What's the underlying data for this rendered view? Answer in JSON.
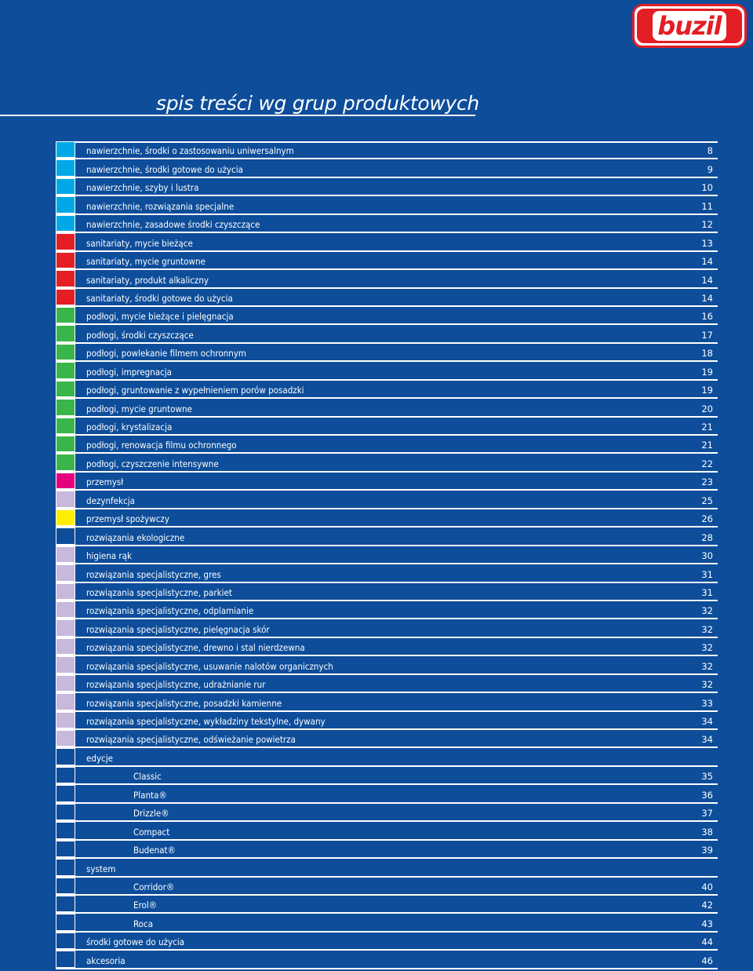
{
  "logo": {
    "text": "buzil"
  },
  "title": "spis treści wg grup produktowych",
  "colors": {
    "cyan": "#00a8e6",
    "red": "#e31e24",
    "green": "#3ab54a",
    "magenta": "#e5007e",
    "lavender": "#c8b8dc",
    "yellow": "#ffed00",
    "navy": "#0d4d9a"
  },
  "entries": [
    {
      "label": "nawierzchnie, środki o zastosowaniu uniwersalnym",
      "page": "8",
      "color": "#00a8e6"
    },
    {
      "label": "nawierzchnie, środki gotowe do użycia",
      "page": "9",
      "color": "#00a8e6"
    },
    {
      "label": "nawierzchnie, szyby i lustra",
      "page": "10",
      "color": "#00a8e6"
    },
    {
      "label": "nawierzchnie, rozwiązania specjalne",
      "page": "11",
      "color": "#00a8e6"
    },
    {
      "label": "nawierzchnie, zasadowe środki czyszczące",
      "page": "12",
      "color": "#00a8e6"
    },
    {
      "label": "sanitariaty, mycie bieżące",
      "page": "13",
      "color": "#e31e24"
    },
    {
      "label": "sanitariaty, mycie gruntowne",
      "page": "14",
      "color": "#e31e24"
    },
    {
      "label": "sanitariaty, produkt alkaliczny",
      "page": "14",
      "color": "#e31e24"
    },
    {
      "label": "sanitariaty, środki gotowe do użycia",
      "page": "14",
      "color": "#e31e24"
    },
    {
      "label": "podłogi, mycie bieżące i pielęgnacja",
      "page": "16",
      "color": "#3ab54a"
    },
    {
      "label": "podłogi, środki czyszczące",
      "page": "17",
      "color": "#3ab54a"
    },
    {
      "label": "podłogi, powlekanie filmem ochronnym",
      "page": "18",
      "color": "#3ab54a"
    },
    {
      "label": "podłogi, impregnacja",
      "page": "19",
      "color": "#3ab54a"
    },
    {
      "label": "podłogi, gruntowanie z wypełnieniem porów posadzki",
      "page": "19",
      "color": "#3ab54a"
    },
    {
      "label": "podłogi, mycie gruntowne",
      "page": "20",
      "color": "#3ab54a"
    },
    {
      "label": "podłogi, krystalizacja",
      "page": "21",
      "color": "#3ab54a"
    },
    {
      "label": "podłogi, renowacja filmu ochronnego",
      "page": "21",
      "color": "#3ab54a"
    },
    {
      "label": "podłogi, czyszczenie intensywne",
      "page": "22",
      "color": "#3ab54a"
    },
    {
      "label": "przemysł",
      "page": "23",
      "color": "#e5007e"
    },
    {
      "label": "dezynfekcja",
      "page": "25",
      "color": "#c8b8dc"
    },
    {
      "label": "przemysł spożywczy",
      "page": "26",
      "color": "#ffed00"
    },
    {
      "label": "rozwiązania ekologiczne",
      "page": "28",
      "color": "#0d4d9a"
    },
    {
      "label": "higiena rąk",
      "page": "30",
      "color": "#c8b8dc"
    },
    {
      "label": "rozwiązania specjalistyczne, gres",
      "page": "31",
      "color": "#c8b8dc"
    },
    {
      "label": "rozwiązania specjalistyczne, parkiet",
      "page": "31",
      "color": "#c8b8dc"
    },
    {
      "label": "rozwiązania specjalistyczne, odplamianie",
      "page": "32",
      "color": "#c8b8dc"
    },
    {
      "label": "rozwiązania specjalistyczne, pielęgnacja skór",
      "page": "32",
      "color": "#c8b8dc"
    },
    {
      "label": "rozwiązania specjalistyczne, drewno i stal nierdzewna",
      "page": "32",
      "color": "#c8b8dc"
    },
    {
      "label": "rozwiązania specjalistyczne, usuwanie nalotów organicznych",
      "page": "32",
      "color": "#c8b8dc"
    },
    {
      "label": "rozwiązania specjalistyczne, udrażnianie rur",
      "page": "32",
      "color": "#c8b8dc"
    },
    {
      "label": "rozwiązania specjalistyczne, posadzki kamienne",
      "page": "33",
      "color": "#c8b8dc"
    },
    {
      "label": "rozwiązania specjalistyczne, wykładziny tekstylne, dywany",
      "page": "34",
      "color": "#c8b8dc"
    },
    {
      "label": "rozwiązania specjalistyczne, odświeżanie powietrza",
      "page": "34",
      "color": "#c8b8dc"
    },
    {
      "label": "edycje",
      "page": "",
      "color": "#0d4d9a"
    },
    {
      "label": "Classic",
      "page": "35",
      "color": "#0d4d9a",
      "sub": true
    },
    {
      "label": "Planta®",
      "page": "36",
      "color": "#0d4d9a",
      "sub": true
    },
    {
      "label": "Drizzle®",
      "page": "37",
      "color": "#0d4d9a",
      "sub": true
    },
    {
      "label": "Compact",
      "page": "38",
      "color": "#0d4d9a",
      "sub": true
    },
    {
      "label": "Budenat®",
      "page": "39",
      "color": "#0d4d9a",
      "sub": true
    },
    {
      "label": "system",
      "page": "",
      "color": "#0d4d9a"
    },
    {
      "label": "Corridor®",
      "page": "40",
      "color": "#0d4d9a",
      "sub": true
    },
    {
      "label": "Erol®",
      "page": "42",
      "color": "#0d4d9a",
      "sub": true
    },
    {
      "label": "Roca",
      "page": "43",
      "color": "#0d4d9a",
      "sub": true
    },
    {
      "label": "środki gotowe do użycia",
      "page": "44",
      "color": "#0d4d9a"
    },
    {
      "label": "akcesoria",
      "page": "46",
      "color": "#0d4d9a"
    }
  ]
}
